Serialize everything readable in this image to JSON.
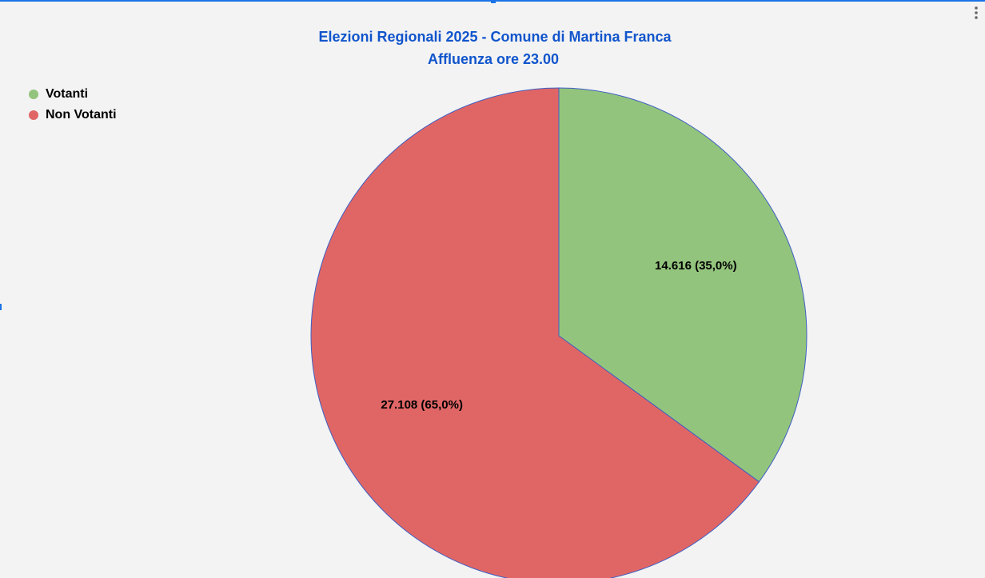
{
  "chart_data": {
    "type": "pie",
    "title": "Elezioni Regionali 2025 - Comune di Martina Franca",
    "subtitle": "Affluenza ore 23.00",
    "categories": [
      "Votanti",
      "Non Votanti"
    ],
    "values": [
      14616,
      27108
    ],
    "value_labels": [
      "14.616 (35,0%)",
      "27.108 (65,0%)"
    ],
    "colors": [
      "#93c47d",
      "#e06666"
    ],
    "legend": "top-left"
  }
}
